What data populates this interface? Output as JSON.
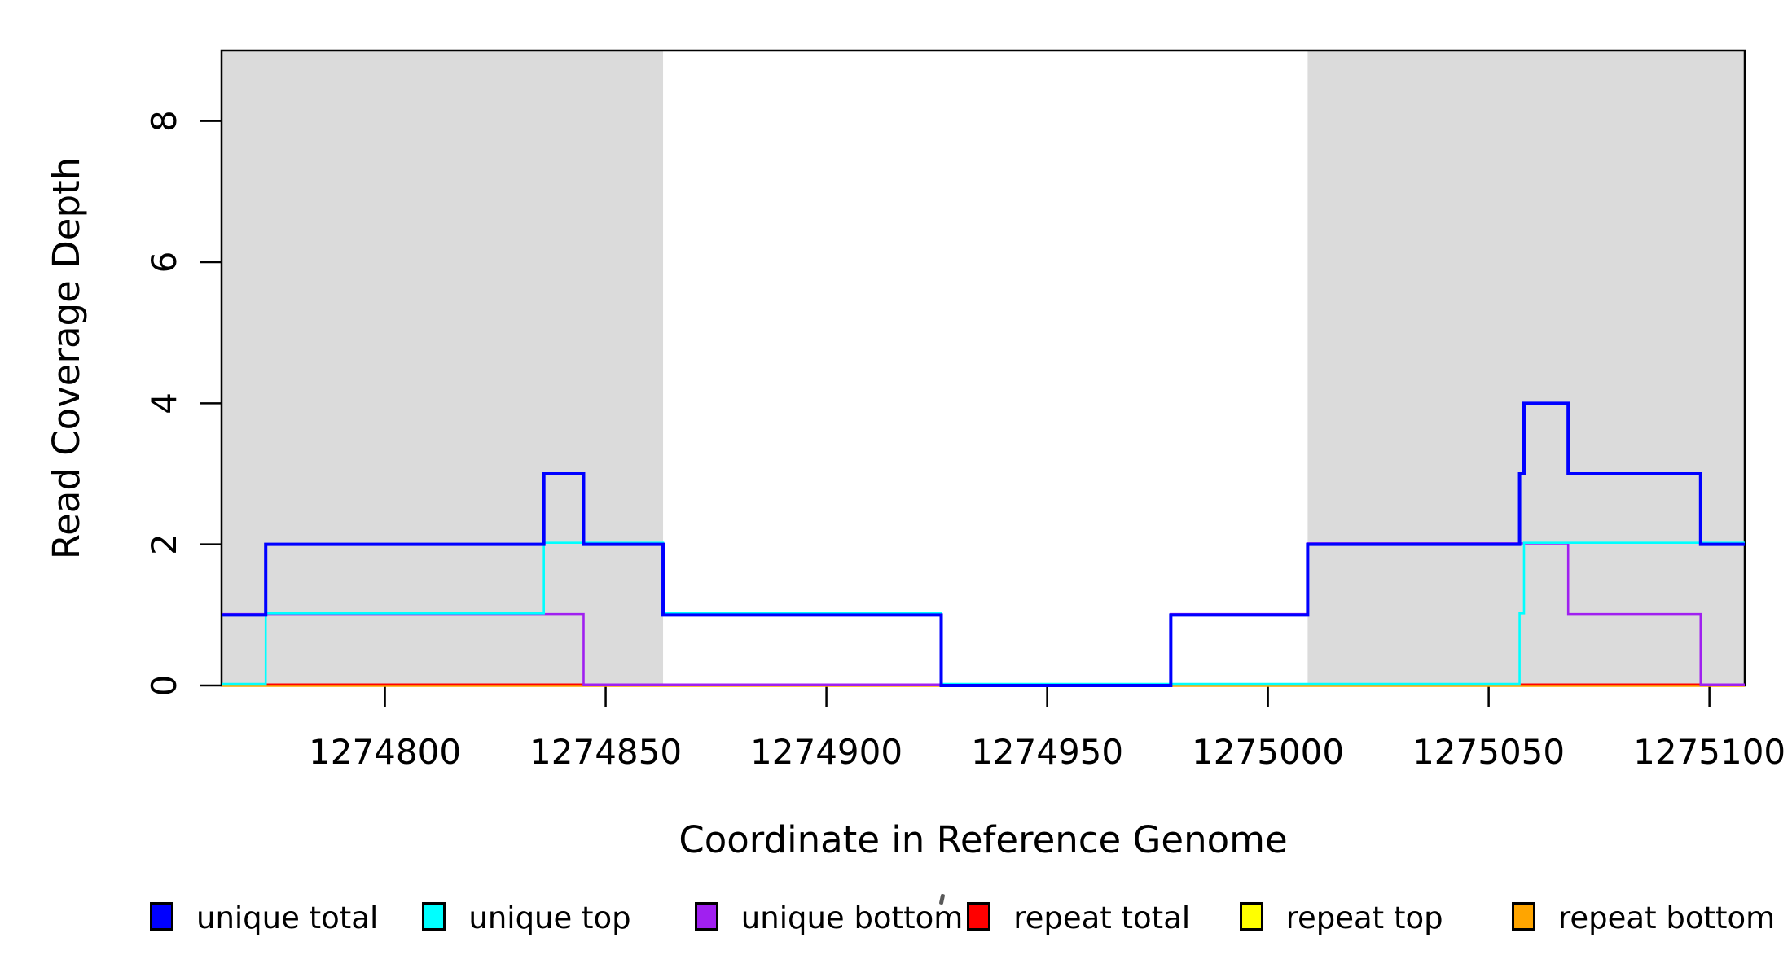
{
  "figure": {
    "xlabel": "Coordinate in Reference Genome",
    "ylabel": "Read Coverage Depth"
  },
  "chart_data": {
    "type": "line",
    "subtype": "step-coverage",
    "title": "",
    "xlabel": "Coordinate in Reference Genome",
    "ylabel": "Read Coverage Depth",
    "xlim": [
      1274763,
      1275108
    ],
    "ylim": [
      0,
      9
    ],
    "grid": false,
    "x_ticks": [
      1274800,
      1274850,
      1274900,
      1274950,
      1275000,
      1275050,
      1275100
    ],
    "x_tick_labels": [
      "1274800",
      "1274850",
      "1274900",
      "1274950",
      "1275000",
      "1275050",
      "1275100"
    ],
    "y_ticks": [
      0,
      2,
      4,
      6,
      8
    ],
    "shade_color": "#DBDBDB",
    "shaded_regions": [
      {
        "start": 1274763,
        "end": 1274863
      },
      {
        "start": 1275009,
        "end": 1275108
      }
    ],
    "series": [
      {
        "name": "unique total",
        "color": "#0000FF",
        "end_x": 1275108,
        "steps": [
          [
            1274763,
            1
          ],
          [
            1274773,
            2
          ],
          [
            1274836,
            3
          ],
          [
            1274845,
            2
          ],
          [
            1274863,
            1
          ],
          [
            1274926,
            0
          ],
          [
            1274978,
            1
          ],
          [
            1275009,
            2
          ],
          [
            1275057,
            3
          ],
          [
            1275058,
            4
          ],
          [
            1275068,
            3
          ],
          [
            1275098,
            2
          ]
        ]
      },
      {
        "name": "unique top",
        "color": "#00FFFF",
        "end_x": 1275108,
        "steps": [
          [
            1274763,
            0
          ],
          [
            1274773,
            1
          ],
          [
            1274836,
            2
          ],
          [
            1274863,
            1
          ],
          [
            1274926,
            0
          ],
          [
            1275057,
            1
          ],
          [
            1275058,
            2
          ]
        ]
      },
      {
        "name": "unique bottom",
        "color": "#A020F0",
        "end_x": 1275108,
        "steps": [
          [
            1274763,
            1
          ],
          [
            1274845,
            0
          ],
          [
            1274978,
            1
          ],
          [
            1275009,
            2
          ],
          [
            1275068,
            1
          ],
          [
            1275098,
            0
          ]
        ]
      },
      {
        "name": "repeat total",
        "color": "#FF0000",
        "end_x": 1275108,
        "steps": [
          [
            1274763,
            0
          ]
        ]
      },
      {
        "name": "repeat top",
        "color": "#FFFF00",
        "end_x": 1275108,
        "steps": [
          [
            1274763,
            0
          ]
        ]
      },
      {
        "name": "repeat bottom",
        "color": "#FFA500",
        "end_x": 1275108,
        "steps": [
          [
            1274763,
            0
          ]
        ]
      }
    ],
    "legend": {
      "position": "bottom",
      "entries": [
        {
          "label": "unique total",
          "color": "#0000FF"
        },
        {
          "label": "unique top",
          "color": "#00FFFF"
        },
        {
          "label": "unique bottom",
          "color": "#A020F0"
        },
        {
          "label": "repeat total",
          "color": "#FF0000"
        },
        {
          "label": "repeat top",
          "color": "#FFFF00"
        },
        {
          "label": "repeat bottom",
          "color": "#FFA500"
        }
      ]
    }
  }
}
